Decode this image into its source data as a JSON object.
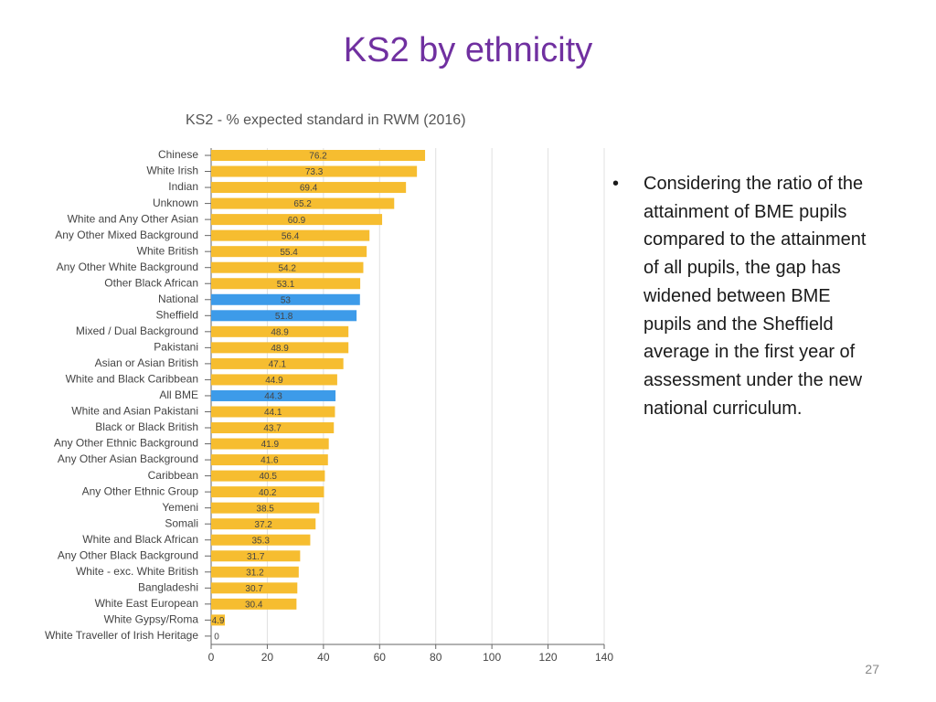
{
  "slide": {
    "title": "KS2 by ethnicity",
    "bullet": "Considering the ratio of the attainment of BME pupils compared to the attainment of all pupils, the gap has widened between BME pupils and the Sheffield average in the first year of assessment under the new national curriculum.",
    "page_number": "27"
  },
  "chart_data": {
    "type": "hbar",
    "title": "KS2 - % expected standard in RWM (2016)",
    "categories": [
      "Chinese",
      "White Irish",
      "Indian",
      "Unknown",
      "White and Any Other Asian",
      "Any Other Mixed Background",
      "White British",
      "Any Other White Background",
      "Other Black African",
      "National",
      "Sheffield",
      "Mixed / Dual Background",
      "Pakistani",
      "Asian or Asian British",
      "White and Black Caribbean",
      "All BME",
      "White and Asian Pakistani",
      "Black or Black British",
      "Any Other Ethnic Background",
      "Any Other Asian Background",
      "Caribbean",
      "Any Other Ethnic Group",
      "Yemeni",
      "Somali",
      "White and Black African",
      "Any Other Black Background",
      "White - exc. White British",
      "Bangladeshi",
      "White East European",
      "White Gypsy/Roma",
      "White Traveller of Irish Heritage"
    ],
    "values": [
      76.2,
      73.3,
      69.4,
      65.2,
      60.9,
      56.4,
      55.4,
      54.2,
      53.1,
      53,
      51.8,
      48.9,
      48.9,
      47.1,
      44.9,
      44.3,
      44.1,
      43.7,
      41.9,
      41.6,
      40.5,
      40.2,
      38.5,
      37.2,
      35.3,
      31.7,
      31.2,
      30.7,
      30.4,
      4.9,
      0
    ],
    "colors": [
      "#f6bd30",
      "#f6bd30",
      "#f6bd30",
      "#f6bd30",
      "#f6bd30",
      "#f6bd30",
      "#f6bd30",
      "#f6bd30",
      "#f6bd30",
      "#3d9be9",
      "#3d9be9",
      "#f6bd30",
      "#f6bd30",
      "#f6bd30",
      "#f6bd30",
      "#3d9be9",
      "#f6bd30",
      "#f6bd30",
      "#f6bd30",
      "#f6bd30",
      "#f6bd30",
      "#f6bd30",
      "#f6bd30",
      "#f6bd30",
      "#f6bd30",
      "#f6bd30",
      "#f6bd30",
      "#f6bd30",
      "#f6bd30",
      "#f6bd30",
      "#f6bd30"
    ],
    "xlim": [
      0,
      140
    ],
    "xticks": [
      0,
      20,
      40,
      60,
      80,
      100,
      120,
      140
    ],
    "grid": true
  }
}
